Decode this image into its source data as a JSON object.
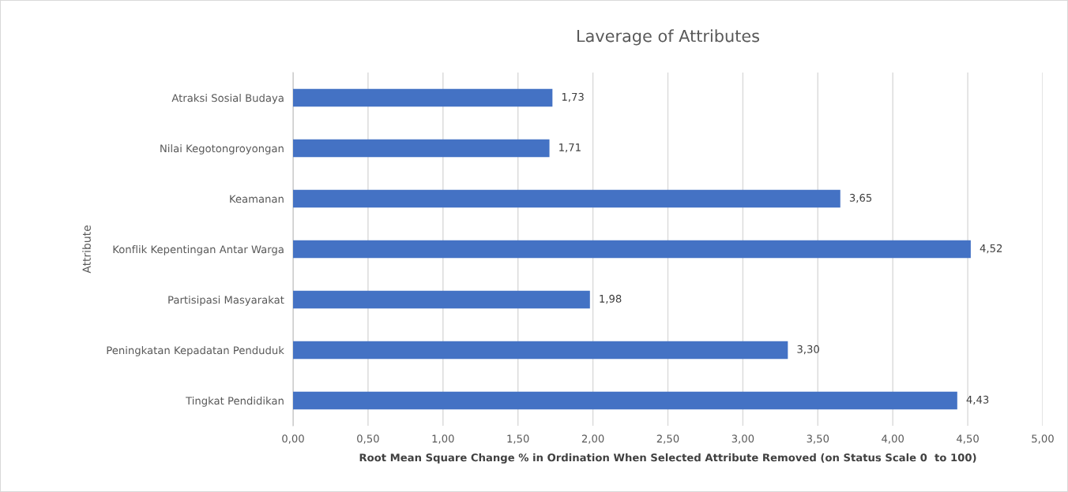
{
  "chart_data": {
    "type": "bar",
    "orientation": "horizontal",
    "title": "Laverage of Attributes",
    "xlabel": "Root Mean Square Change % in Ordination When Selected Attribute Removed (on Status Scale 0  to 100)",
    "ylabel": "Attribute",
    "categories": [
      "Atraksi Sosial Budaya",
      "Nilai Kegotongroyongan",
      "Keamanan",
      "Konflik Kepentingan Antar Warga",
      "Partisipasi Masyarakat",
      "Peningkatan Kepadatan Penduduk",
      "Tingkat Pendidikan"
    ],
    "values": [
      1.73,
      1.71,
      3.65,
      4.52,
      1.98,
      3.3,
      4.43
    ],
    "value_labels": [
      "1,73",
      "1,71",
      "3,65",
      "4,52",
      "1,98",
      "3,30",
      "4,43"
    ],
    "color": "#4472c4",
    "xlim": [
      0,
      5
    ],
    "xticks": [
      {
        "value": 0,
        "label": "0,00"
      },
      {
        "value": 0.5,
        "label": "0,50"
      },
      {
        "value": 1,
        "label": "1,00"
      },
      {
        "value": 1.5,
        "label": "1,50"
      },
      {
        "value": 2,
        "label": "2,00"
      },
      {
        "value": 2.5,
        "label": "2,50"
      },
      {
        "value": 3,
        "label": "3,00"
      },
      {
        "value": 3.5,
        "label": "3,50"
      },
      {
        "value": 4,
        "label": "4,00"
      },
      {
        "value": 4.5,
        "label": "4,50"
      },
      {
        "value": 5,
        "label": "5,00"
      }
    ],
    "grid": "x"
  }
}
